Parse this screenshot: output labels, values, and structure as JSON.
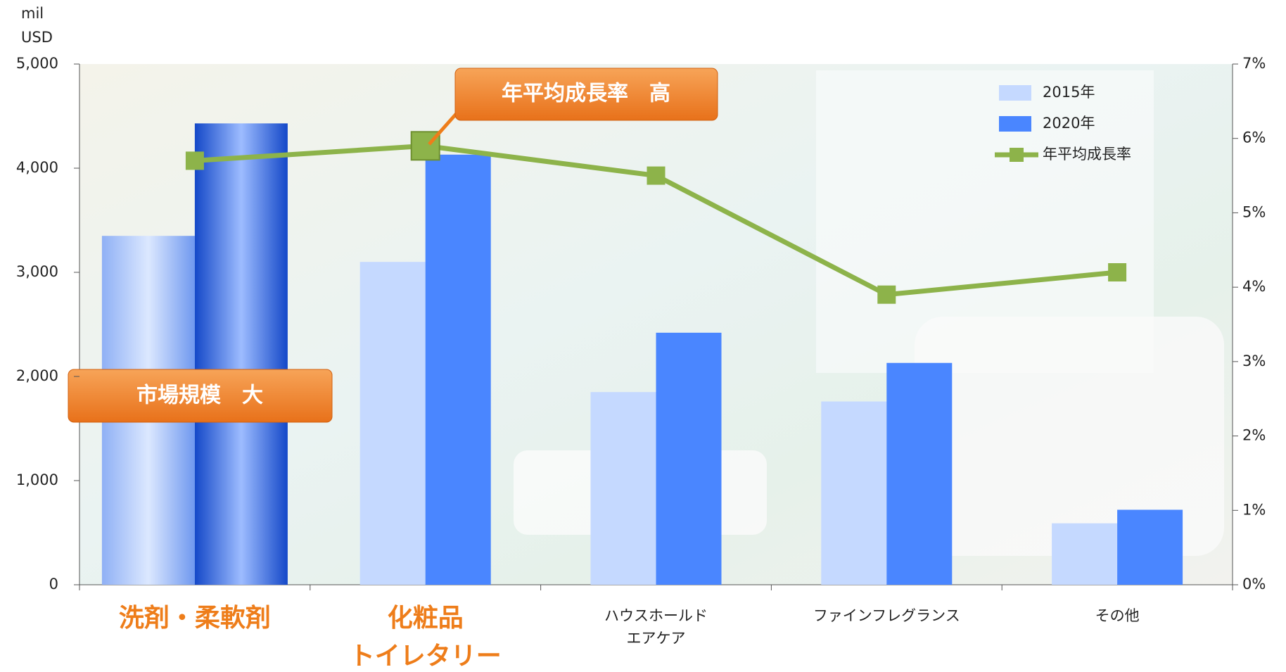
{
  "chart_data": {
    "type": "bar_line",
    "y_unit": [
      "mil",
      "USD"
    ],
    "categories": [
      [
        "洗剤・柔軟剤"
      ],
      [
        "化粧品",
        "トイレタリー"
      ],
      [
        "ハウスホールド",
        "エアケア"
      ],
      [
        "ファインフレグランス"
      ],
      [
        "その他"
      ]
    ],
    "series": [
      {
        "name": "2015年",
        "color": "#c5d9ff",
        "values": [
          3350,
          3100,
          1850,
          1760,
          590
        ]
      },
      {
        "name": "2020年",
        "color": "#4a86ff",
        "values": [
          4430,
          4130,
          2420,
          2130,
          720
        ]
      },
      {
        "name": "年平均成長率",
        "color": "#8db34a",
        "values": [
          5.7,
          5.9,
          5.5,
          3.9,
          4.2
        ],
        "axis": "y2",
        "type": "line"
      }
    ],
    "ylim": [
      0,
      5000
    ],
    "yticks": [
      0,
      {
        "value": 1000,
        "label": "1,000"
      },
      {
        "value": 2000,
        "label": "2,000"
      },
      {
        "value": 3000,
        "label": "3,000"
      },
      {
        "value": 4000,
        "label": "4,000"
      },
      {
        "value": 5000,
        "label": "5,000"
      }
    ],
    "y2lim": [
      0,
      7
    ],
    "y2ticks": [
      {
        "value": 0,
        "label": "0%"
      },
      {
        "value": 1,
        "label": "1%"
      },
      {
        "value": 2,
        "label": "2%"
      },
      {
        "value": 3,
        "label": "3%"
      },
      {
        "value": 4,
        "label": "4%"
      },
      {
        "value": 5,
        "label": "5%"
      },
      {
        "value": 6,
        "label": "6%"
      },
      {
        "value": 7,
        "label": "7%"
      }
    ],
    "annotations": [
      "市場規模　大",
      "年平均成長率　高"
    ],
    "legend": "upper right"
  }
}
